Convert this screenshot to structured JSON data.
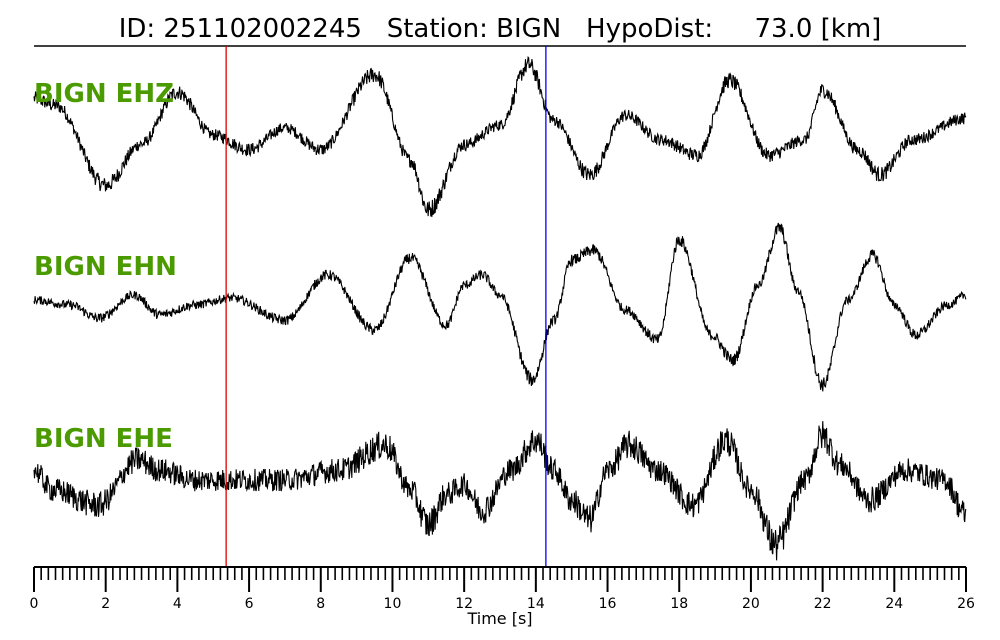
{
  "chart_data": {
    "type": "line",
    "title": "ID: 251102002245   Station: BIGN   HypoDist:     73.0 [km]",
    "xlabel": "Time [s]",
    "xlim": [
      0,
      26
    ],
    "xticks": [
      "0",
      "2",
      "4",
      "6",
      "8",
      "10",
      "12",
      "14",
      "16",
      "18",
      "20",
      "22",
      "24",
      "26"
    ],
    "minor_tick_step": 0.2,
    "label_color": "#4a9a00",
    "markers": [
      {
        "color": "#e00000",
        "time": 5.36
      },
      {
        "color": "#0000ff",
        "time": 14.28
      }
    ],
    "series": [
      {
        "name": "BIGN EHZ",
        "noise": 0.08,
        "points": [
          [
            0,
            0.45
          ],
          [
            0.6,
            0.35
          ],
          [
            2,
            -0.79
          ],
          [
            3,
            -0.2
          ],
          [
            4,
            0.54
          ],
          [
            5,
            -0.07
          ],
          [
            6,
            -0.28
          ],
          [
            7,
            0.03
          ],
          [
            8,
            -0.28
          ],
          [
            9.5,
            0.79
          ],
          [
            10.5,
            -0.43
          ],
          [
            11,
            -1.14
          ],
          [
            12,
            -0.21
          ],
          [
            13,
            0.07
          ],
          [
            13.8,
            0.93
          ],
          [
            14.5,
            0.14
          ],
          [
            15.5,
            -0.64
          ],
          [
            16.5,
            0.21
          ],
          [
            17.5,
            -0.14
          ],
          [
            18.5,
            -0.36
          ],
          [
            19.4,
            0.71
          ],
          [
            20.5,
            -0.36
          ],
          [
            21.5,
            -0.14
          ],
          [
            22,
            0.57
          ],
          [
            23,
            -0.29
          ],
          [
            23.6,
            -0.64
          ],
          [
            24.5,
            -0.14
          ],
          [
            26,
            0.17
          ]
        ]
      },
      {
        "name": "BIGN EHN",
        "noise": 0.06,
        "points": [
          [
            0,
            0
          ],
          [
            1,
            -0.07
          ],
          [
            1.8,
            -0.26
          ],
          [
            2.8,
            0.07
          ],
          [
            3.5,
            -0.21
          ],
          [
            4.5,
            -0.07
          ],
          [
            5.5,
            0.03
          ],
          [
            7,
            -0.29
          ],
          [
            8.2,
            0.36
          ],
          [
            9.5,
            -0.43
          ],
          [
            10.5,
            0.6
          ],
          [
            11.5,
            -0.36
          ],
          [
            12,
            0.21
          ],
          [
            12.5,
            0.36
          ],
          [
            13,
            0.07
          ],
          [
            13.9,
            -1.14
          ],
          [
            14.5,
            -0.29
          ],
          [
            15,
            0.57
          ],
          [
            15.6,
            0.71
          ],
          [
            16.5,
            -0.14
          ],
          [
            17.4,
            -0.57
          ],
          [
            18,
            0.86
          ],
          [
            18.9,
            -0.5
          ],
          [
            19.5,
            -0.86
          ],
          [
            20.2,
            0.21
          ],
          [
            20.8,
            1.03
          ],
          [
            21.3,
            0.14
          ],
          [
            22,
            -1.21
          ],
          [
            22.7,
            0
          ],
          [
            23.4,
            0.64
          ],
          [
            24,
            -0.07
          ],
          [
            24.6,
            -0.5
          ],
          [
            25.5,
            -0.07
          ],
          [
            26,
            0.07
          ]
        ]
      },
      {
        "name": "BIGN EHE",
        "noise": 0.16,
        "points": [
          [
            0,
            0.14
          ],
          [
            0.5,
            -0.14
          ],
          [
            1.8,
            -0.36
          ],
          [
            2.9,
            0.29
          ],
          [
            3.5,
            0.14
          ],
          [
            4.5,
            0
          ],
          [
            5.5,
            0
          ],
          [
            7,
            0
          ],
          [
            8.5,
            0.14
          ],
          [
            9.8,
            0.5
          ],
          [
            10.5,
            -0.14
          ],
          [
            11,
            -0.64
          ],
          [
            11.5,
            -0.21
          ],
          [
            12,
            -0.07
          ],
          [
            12.5,
            -0.43
          ],
          [
            13.3,
            0.14
          ],
          [
            14,
            0.57
          ],
          [
            14.5,
            0.14
          ],
          [
            15,
            -0.29
          ],
          [
            15.5,
            -0.57
          ],
          [
            16,
            0.14
          ],
          [
            16.6,
            0.5
          ],
          [
            17.4,
            0.14
          ],
          [
            18.4,
            -0.36
          ],
          [
            19.3,
            0.57
          ],
          [
            20,
            -0.14
          ],
          [
            20.7,
            -0.93
          ],
          [
            21.5,
            0
          ],
          [
            22,
            0.64
          ],
          [
            22.5,
            0.21
          ],
          [
            23.3,
            -0.29
          ],
          [
            24.3,
            0.14
          ],
          [
            25.4,
            0
          ],
          [
            26,
            -0.5
          ]
        ]
      }
    ]
  }
}
